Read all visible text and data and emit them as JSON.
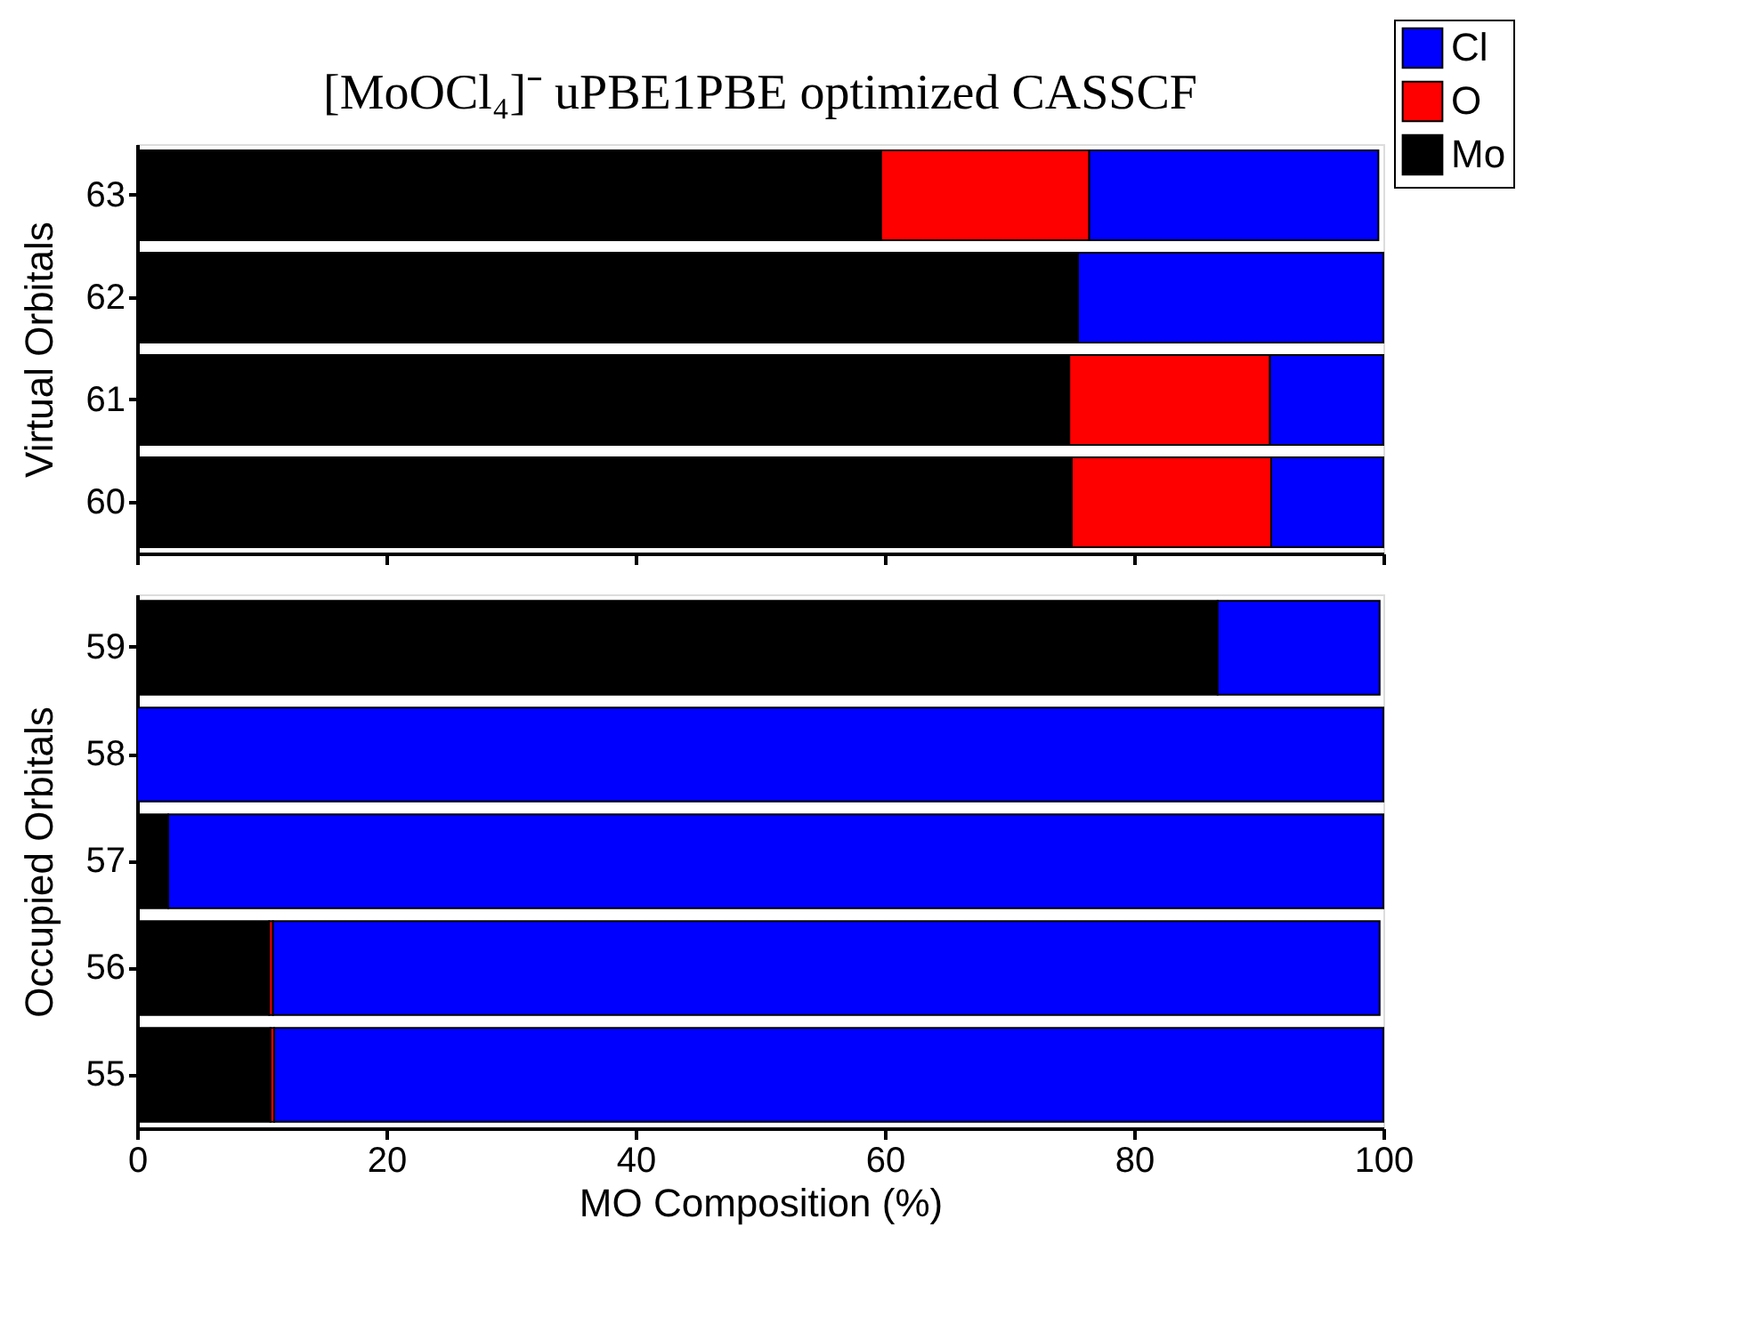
{
  "chart_data": [
    {
      "type": "bar",
      "orientation": "horizontal",
      "stacked": true,
      "title": "[MoOCl₄]⁻ uPBE1PBE optimized CASSCF",
      "ylabel": "Virtual Orbitals",
      "categories": [
        "63",
        "62",
        "61",
        "60"
      ],
      "xlim": [
        0,
        100
      ],
      "xticks": [
        0,
        20,
        40,
        60,
        80,
        100
      ],
      "tick_labels": "y",
      "grid": false,
      "legend": "top right",
      "series": [
        {
          "name": "Mo",
          "color": "#000000",
          "values": [
            59.7,
            75.5,
            74.8,
            75.0
          ]
        },
        {
          "name": "O",
          "color": "#ff0000",
          "values": [
            16.7,
            0,
            16.1,
            16.0
          ]
        },
        {
          "name": "Cl",
          "color": "#0000ff",
          "values": [
            23.2,
            24.5,
            9.1,
            9.0
          ]
        }
      ]
    },
    {
      "type": "bar",
      "orientation": "horizontal",
      "stacked": true,
      "xlabel": "MO Composition (%)",
      "ylabel": "Occupied Orbitals",
      "categories": [
        "59",
        "58",
        "57",
        "56",
        "55"
      ],
      "xlim": [
        0,
        100
      ],
      "xticks": [
        0,
        20,
        40,
        60,
        80,
        100
      ],
      "grid": false,
      "legend": false,
      "series": [
        {
          "color": "#000000",
          "values": [
            86.7,
            0,
            2.5,
            10.6,
            10.7
          ]
        },
        {
          "color": "#ff0000",
          "values": [
            0,
            0,
            0,
            0.3,
            0.3
          ]
        },
        {
          "color": "#0000ff",
          "values": [
            13.0,
            100,
            97.5,
            88.8,
            89.0
          ]
        }
      ]
    }
  ]
}
